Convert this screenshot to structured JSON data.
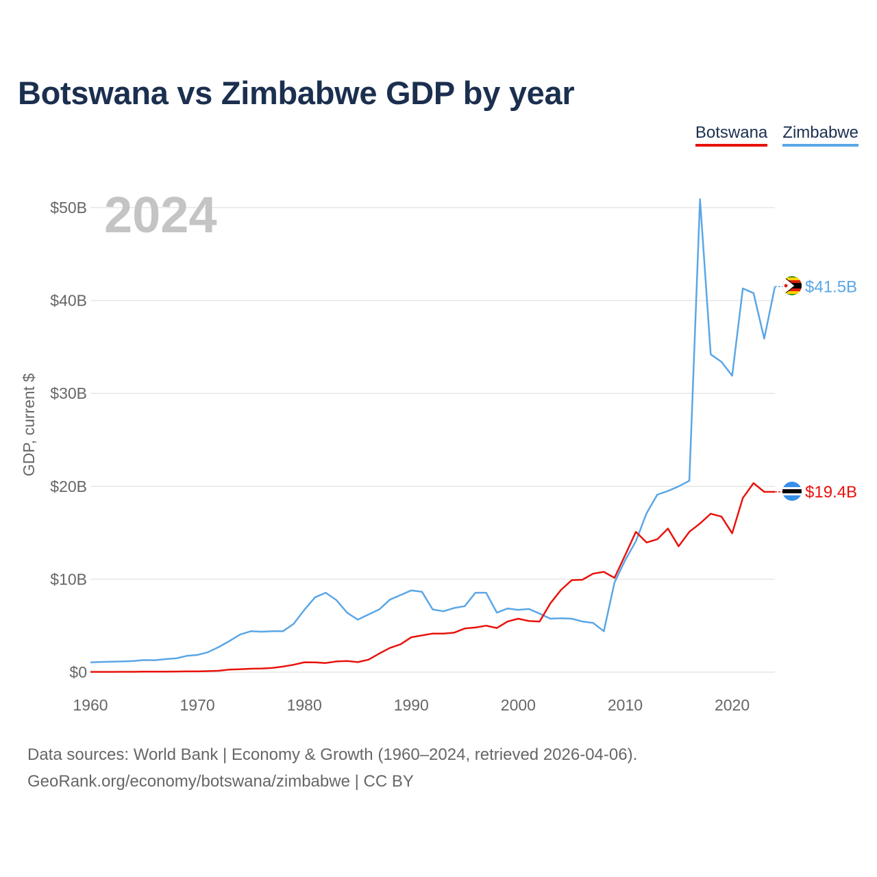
{
  "title": "Botswana vs Zimbabwe GDP by year",
  "legend": {
    "botswana": "Botswana",
    "zimbabwe": "Zimbabwe"
  },
  "year_watermark": "2024",
  "colors": {
    "botswana": "#e8120c",
    "zimbabwe": "#5aa6e6",
    "title": "#1b2f4f",
    "grid": "#e6e6e6"
  },
  "footer": {
    "line1": "Data sources: World Bank | Economy & Growth (1960–2024, retrieved 2026-04-06).",
    "line2": "GeoRank.org/economy/botswana/zimbabwe | CC BY"
  },
  "chart_data": {
    "type": "line",
    "title": "Botswana vs Zimbabwe GDP by year",
    "xlabel": "",
    "ylabel": "GDP, current $",
    "xlim": [
      1960,
      2024
    ],
    "ylim": [
      0,
      50
    ],
    "y_unit": "billion USD",
    "x_ticks": [
      1960,
      1970,
      1980,
      1990,
      2000,
      2010,
      2020
    ],
    "x_tick_labels": [
      "1960",
      "1970",
      "1980",
      "1990",
      "2000",
      "2010",
      "2020"
    ],
    "y_ticks": [
      0,
      10,
      20,
      30,
      40,
      50
    ],
    "y_tick_labels": [
      "$0",
      "$10B",
      "$20B",
      "$30B",
      "$40B",
      "$50B"
    ],
    "x": [
      1960,
      1961,
      1962,
      1963,
      1964,
      1965,
      1966,
      1967,
      1968,
      1969,
      1970,
      1971,
      1972,
      1973,
      1974,
      1975,
      1976,
      1977,
      1978,
      1979,
      1980,
      1981,
      1982,
      1983,
      1984,
      1985,
      1986,
      1987,
      1988,
      1989,
      1990,
      1991,
      1992,
      1993,
      1994,
      1995,
      1996,
      1997,
      1998,
      1999,
      2000,
      2001,
      2002,
      2003,
      2004,
      2005,
      2006,
      2007,
      2008,
      2009,
      2010,
      2011,
      2012,
      2013,
      2014,
      2015,
      2016,
      2017,
      2018,
      2019,
      2020,
      2021,
      2022,
      2023,
      2024
    ],
    "series": [
      {
        "name": "Botswana",
        "color": "#e8120c",
        "end_label": "$19.4B",
        "values": [
          0.03,
          0.03,
          0.03,
          0.04,
          0.04,
          0.05,
          0.05,
          0.06,
          0.07,
          0.08,
          0.08,
          0.11,
          0.15,
          0.27,
          0.32,
          0.37,
          0.38,
          0.45,
          0.6,
          0.8,
          1.06,
          1.05,
          0.98,
          1.15,
          1.2,
          1.08,
          1.34,
          2.0,
          2.6,
          3.0,
          3.75,
          3.95,
          4.15,
          4.15,
          4.25,
          4.7,
          4.8,
          5.0,
          4.75,
          5.45,
          5.75,
          5.5,
          5.45,
          7.4,
          8.85,
          9.9,
          9.95,
          10.6,
          10.8,
          10.15,
          12.6,
          15.1,
          13.95,
          14.3,
          15.45,
          13.55,
          15.1,
          16.0,
          17.05,
          16.75,
          14.95,
          18.75,
          20.35,
          19.4,
          19.4
        ]
      },
      {
        "name": "Zimbabwe",
        "color": "#5aa6e6",
        "end_label": "$41.5B",
        "values": [
          1.05,
          1.1,
          1.12,
          1.15,
          1.2,
          1.3,
          1.28,
          1.4,
          1.48,
          1.75,
          1.85,
          2.15,
          2.7,
          3.35,
          4.05,
          4.4,
          4.35,
          4.4,
          4.4,
          5.2,
          6.7,
          8.05,
          8.55,
          7.75,
          6.4,
          5.65,
          6.2,
          6.75,
          7.8,
          8.3,
          8.8,
          8.65,
          6.75,
          6.55,
          6.9,
          7.1,
          8.55,
          8.55,
          6.4,
          6.85,
          6.7,
          6.8,
          6.3,
          5.75,
          5.8,
          5.75,
          5.45,
          5.3,
          4.4,
          9.65,
          12.05,
          14.1,
          17.1,
          19.1,
          19.5,
          20.0,
          20.6,
          50.9,
          34.2,
          33.4,
          31.9,
          41.3,
          40.8,
          35.9,
          41.5
        ]
      }
    ]
  }
}
